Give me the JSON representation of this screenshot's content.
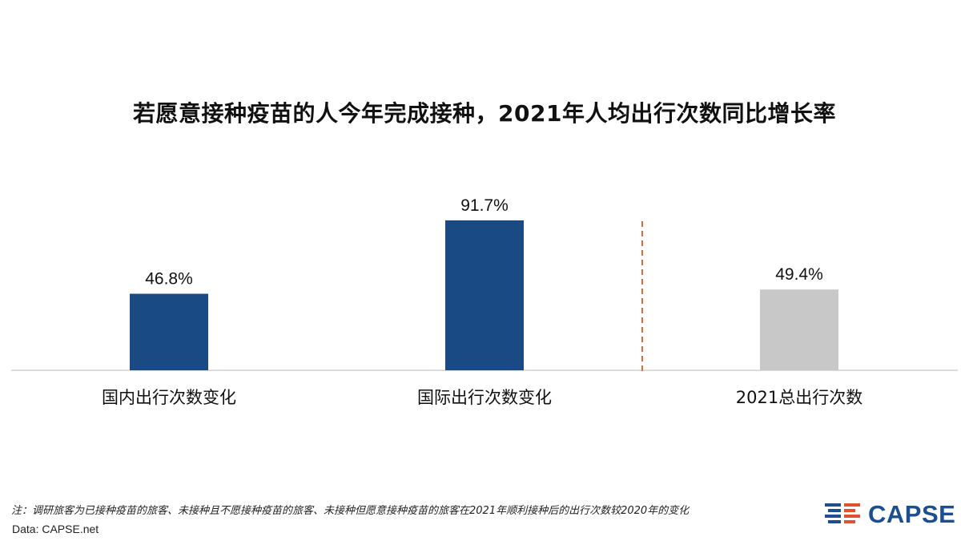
{
  "colors": {
    "primary_bar": "#1a4a84",
    "highlight_bar": "#c8c8c8",
    "divider": "#e06a3c",
    "baseline": "#d0d0d0",
    "logo_blue": "#1d4e8f",
    "logo_red": "#e0522f"
  },
  "chart_data": {
    "type": "bar",
    "title": "若愿意接种疫苗的人今年完成接种，2021年人均出行次数同比增长率",
    "categories": [
      "国内出行次数变化",
      "国际出行次数变化",
      "2021总出行次数"
    ],
    "values": [
      46.8,
      91.7,
      49.4
    ],
    "labels": [
      "46.8%",
      "91.7%",
      "49.4%"
    ],
    "unit": "%",
    "ylim": [
      0,
      100
    ],
    "grid": false,
    "legend": "none",
    "highlight_index": 2,
    "divider_between": [
      1,
      2
    ]
  },
  "footer": {
    "note": "注：调研旅客为已接种疫苗的旅客、未接种且不愿接种疫苗的旅客、未接种但愿意接种疫苗的旅客在2021年顺利接种后的出行次数较2020年的变化",
    "source": "Data: CAPSE.net"
  },
  "logo": {
    "text": "CAPSE",
    "icon": "capse-logo-icon"
  }
}
